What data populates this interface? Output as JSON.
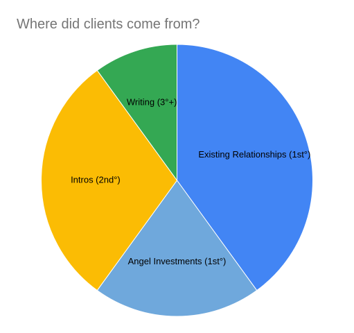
{
  "chart_data": {
    "type": "pie",
    "title": "Where did clients come from?",
    "slices": [
      {
        "label": "Existing Relationships (1st°)",
        "value": 40,
        "color": "#4285f4"
      },
      {
        "label": "Angel Investments (1st°)",
        "value": 20,
        "color": "#6fa8dc"
      },
      {
        "label": "Intros (2nd°)",
        "value": 30,
        "color": "#fbbc04"
      },
      {
        "label": "Writing (3°+)",
        "value": 10,
        "color": "#34a853"
      }
    ],
    "legend": "none"
  }
}
